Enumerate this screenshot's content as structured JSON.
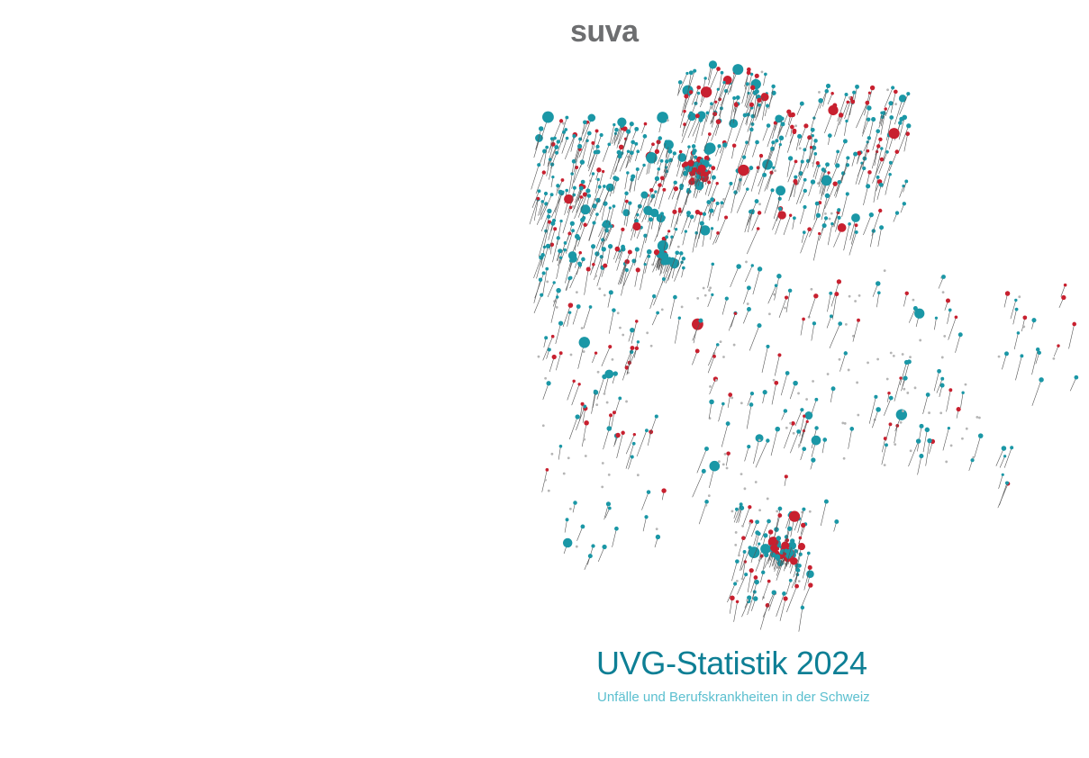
{
  "header": {
    "logo": "suva"
  },
  "cover": {
    "title": "UVG-Statistik 2024",
    "subtitle": "Unfälle und Berufskrankheiten in der Schweiz"
  }
}
